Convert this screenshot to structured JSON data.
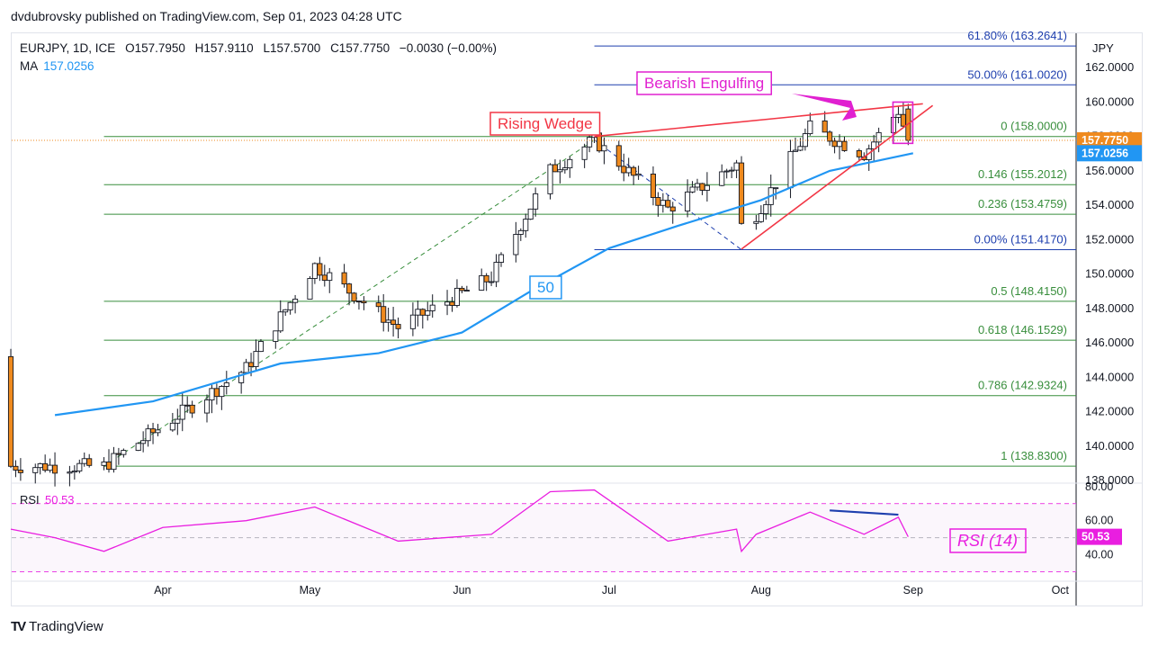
{
  "header": {
    "published": "dvdubrovsky published on TradingView.com, Sep 01, 2023 04:28 UTC",
    "symbol": "EURJPY, 1D, ICE",
    "open": "O157.7950",
    "high": "H157.9110",
    "low": "L157.5700",
    "close": "C157.7750",
    "change": "−0.0030 (−0.00%)",
    "ma_label": "MA",
    "ma_value": "157.0256"
  },
  "brand": {
    "logo": "TV",
    "name": "TradingView"
  },
  "colors": {
    "up": "#131722",
    "down": "#ef8a1e",
    "ma": "#2196f3",
    "fib": "#388e3c",
    "fib_top": "#1e3fae",
    "wedge": "#f23645",
    "annot": "#e020d0",
    "rsi": "#e91ee0"
  },
  "chart_data": {
    "type": "candlestick",
    "currency": "JPY",
    "ylim": [
      138,
      164
    ],
    "y_ticks": [
      "162.0000",
      "160.0000",
      "158.0000",
      "156.0000",
      "154.0000",
      "152.0000",
      "150.0000",
      "148.0000",
      "146.0000",
      "144.0000",
      "142.0000",
      "140.0000",
      "138.0000"
    ],
    "y_tick_values": [
      162,
      160,
      158,
      156,
      154,
      152,
      150,
      148,
      146,
      144,
      142,
      140,
      138
    ],
    "x_ticks": [
      {
        "label": "Apr",
        "date": "2023-04-01"
      },
      {
        "label": "May",
        "date": "2023-05-01"
      },
      {
        "label": "Jun",
        "date": "2023-06-01"
      },
      {
        "label": "Jul",
        "date": "2023-07-01"
      },
      {
        "label": "Aug",
        "date": "2023-08-01"
      },
      {
        "label": "Sep",
        "date": "2023-09-01"
      },
      {
        "label": "Oct",
        "date": "2023-10-01"
      }
    ],
    "price_badges": [
      {
        "label": "157.7750",
        "value": 157.775,
        "color": "#ef8a1e"
      },
      {
        "label": "157.0256",
        "value": 157.0256,
        "color": "#2196f3"
      }
    ],
    "key_points": [
      {
        "date": "2023-03-20",
        "close": 138.83
      },
      {
        "date": "2023-04-18",
        "close": 144.5
      },
      {
        "date": "2023-05-02",
        "close": 150.5
      },
      {
        "date": "2023-05-19",
        "close": 146.9
      },
      {
        "date": "2023-06-07",
        "close": 149.8
      },
      {
        "date": "2023-06-19",
        "close": 156.0
      },
      {
        "date": "2023-06-28",
        "close": 157.8
      },
      {
        "date": "2023-07-13",
        "close": 153.8
      },
      {
        "date": "2023-07-27",
        "close": 156.4
      },
      {
        "date": "2023-07-28",
        "close": 152.8
      },
      {
        "date": "2023-07-31",
        "close": 153.5
      },
      {
        "date": "2023-08-11",
        "close": 158.5
      },
      {
        "date": "2023-08-22",
        "close": 157.0
      },
      {
        "date": "2023-08-29",
        "close": 159.5
      },
      {
        "date": "2023-08-31",
        "close": 157.775
      }
    ],
    "ma": {
      "name": "50",
      "points": [
        {
          "date": "2023-03-10",
          "value": 141.8
        },
        {
          "date": "2023-03-30",
          "value": 142.6
        },
        {
          "date": "2023-04-25",
          "value": 144.8
        },
        {
          "date": "2023-05-15",
          "value": 145.4
        },
        {
          "date": "2023-06-01",
          "value": 146.6
        },
        {
          "date": "2023-06-15",
          "value": 149.0
        },
        {
          "date": "2023-07-01",
          "value": 151.5
        },
        {
          "date": "2023-07-15",
          "value": 152.8
        },
        {
          "date": "2023-08-01",
          "value": 154.3
        },
        {
          "date": "2023-08-15",
          "value": 156.0
        },
        {
          "date": "2023-09-01",
          "value": 157.0256
        }
      ]
    },
    "fib_levels": [
      {
        "label": "61.80% (163.2641)",
        "value": 163.2641,
        "start": "2023-06-28",
        "group": "top"
      },
      {
        "label": "50.00% (161.0020)",
        "value": 161.002,
        "start": "2023-06-28",
        "group": "top"
      },
      {
        "label": "0 (158.0000)",
        "value": 158.0,
        "start": "2023-03-20",
        "group": "main"
      },
      {
        "label": "0.146 (155.2012)",
        "value": 155.2012,
        "start": "2023-03-20",
        "group": "main"
      },
      {
        "label": "0.236 (153.4759)",
        "value": 153.4759,
        "start": "2023-03-20",
        "group": "main"
      },
      {
        "label": "0.00% (151.4170)",
        "value": 151.417,
        "start": "2023-06-28",
        "group": "top"
      },
      {
        "label": "0.5 (148.4150)",
        "value": 148.415,
        "start": "2023-03-20",
        "group": "main"
      },
      {
        "label": "0.618 (146.1529)",
        "value": 146.1529,
        "start": "2023-03-20",
        "group": "main"
      },
      {
        "label": "0.786 (142.9324)",
        "value": 142.9324,
        "start": "2023-03-20",
        "group": "main"
      },
      {
        "label": "1 (138.8300)",
        "value": 138.83,
        "start": "2023-03-20",
        "group": "main"
      }
    ],
    "annotations": {
      "rising_wedge": "Rising Wedge",
      "bearish_engulfing": "Bearish Engulfing",
      "ma_tag": "50",
      "rsi_tag": "RSI (14)"
    },
    "rsi": {
      "label": "RSI",
      "value": "50.53",
      "last": 50.53,
      "ylim": [
        25,
        82
      ],
      "ticks": [
        "80.00",
        "60.00",
        "40.00"
      ],
      "tick_values": [
        80,
        60,
        40
      ],
      "levels": [
        70,
        50,
        30
      ],
      "points": [
        {
          "date": "2023-03-01",
          "value": 55
        },
        {
          "date": "2023-03-10",
          "value": 50
        },
        {
          "date": "2023-03-20",
          "value": 42
        },
        {
          "date": "2023-04-01",
          "value": 56
        },
        {
          "date": "2023-04-18",
          "value": 60
        },
        {
          "date": "2023-05-02",
          "value": 68
        },
        {
          "date": "2023-05-19",
          "value": 48
        },
        {
          "date": "2023-06-07",
          "value": 52
        },
        {
          "date": "2023-06-19",
          "value": 77
        },
        {
          "date": "2023-06-28",
          "value": 78
        },
        {
          "date": "2023-07-13",
          "value": 48
        },
        {
          "date": "2023-07-27",
          "value": 55
        },
        {
          "date": "2023-07-28",
          "value": 42
        },
        {
          "date": "2023-07-31",
          "value": 52
        },
        {
          "date": "2023-08-11",
          "value": 65
        },
        {
          "date": "2023-08-22",
          "value": 52
        },
        {
          "date": "2023-08-29",
          "value": 62
        },
        {
          "date": "2023-08-31",
          "value": 50.53
        }
      ]
    }
  }
}
